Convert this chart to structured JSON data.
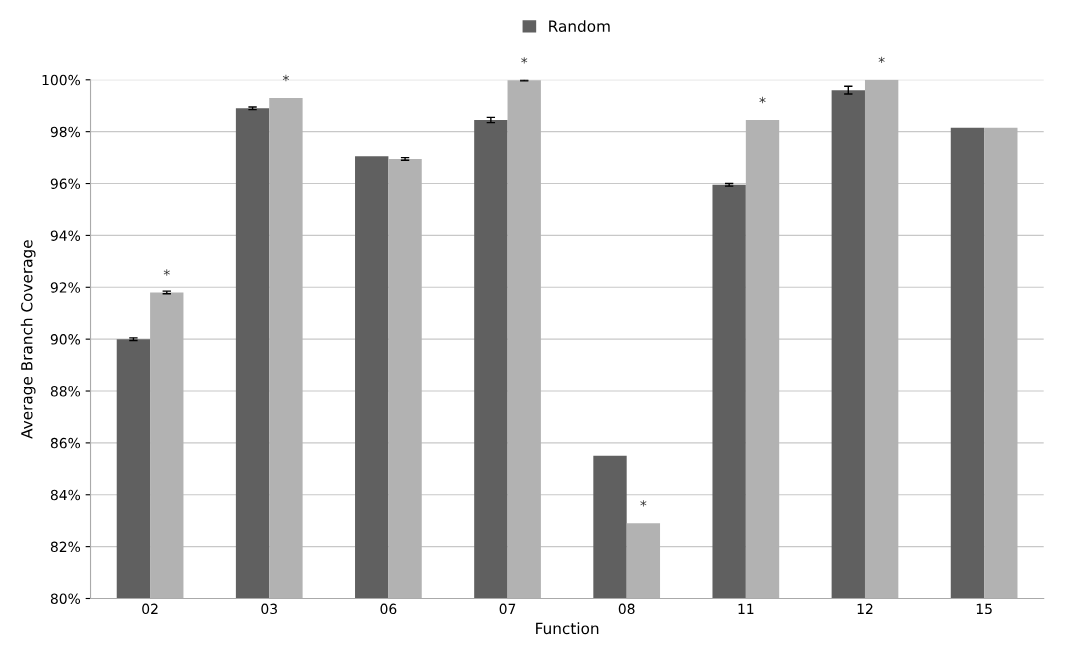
{
  "chart_data": {
    "type": "bar",
    "xlabel": "Function",
    "ylabel": "Average Branch Coverage",
    "categories": [
      "02",
      "03",
      "06",
      "07",
      "08",
      "11",
      "12",
      "15"
    ],
    "series": [
      {
        "name": "Random",
        "color": "#606060",
        "values": [
          90.0,
          98.9,
          97.05,
          98.45,
          85.5,
          95.95,
          99.6,
          98.15
        ],
        "errors": [
          0.05,
          0.05,
          null,
          0.1,
          null,
          0.05,
          0.15,
          null
        ]
      },
      {
        "color": "#b2b2b2",
        "values": [
          91.8,
          99.3,
          96.95,
          99.98,
          82.9,
          98.45,
          100.0,
          98.15
        ],
        "errors": [
          0.05,
          null,
          0.05,
          0.02,
          null,
          null,
          null,
          null
        ]
      }
    ],
    "ylim": [
      80,
      100
    ],
    "yticks": [
      {
        "value": 80,
        "label": "80%"
      },
      {
        "value": 82,
        "label": "82%"
      },
      {
        "value": 84,
        "label": "84%"
      },
      {
        "value": 86,
        "label": "86%"
      },
      {
        "value": 88,
        "label": "88%"
      },
      {
        "value": 90,
        "label": "90%"
      },
      {
        "value": 92,
        "label": "92%"
      },
      {
        "value": 94,
        "label": "94%"
      },
      {
        "value": 96,
        "label": "96%"
      },
      {
        "value": 98,
        "label": "98%"
      },
      {
        "value": 100,
        "label": "100%"
      }
    ],
    "grid": "y",
    "legend": "top",
    "annotations": [
      {
        "text": "*",
        "x": "02",
        "y": 91.8
      },
      {
        "text": "*",
        "x": "03",
        "y": 99.3
      },
      {
        "text": "*",
        "x": "07",
        "y": 99.98
      },
      {
        "text": "*",
        "x": "08",
        "y": 82.9
      },
      {
        "text": "*",
        "x": "11",
        "y": 98.45
      },
      {
        "text": "*",
        "x": "12",
        "y": 100.0
      }
    ]
  }
}
